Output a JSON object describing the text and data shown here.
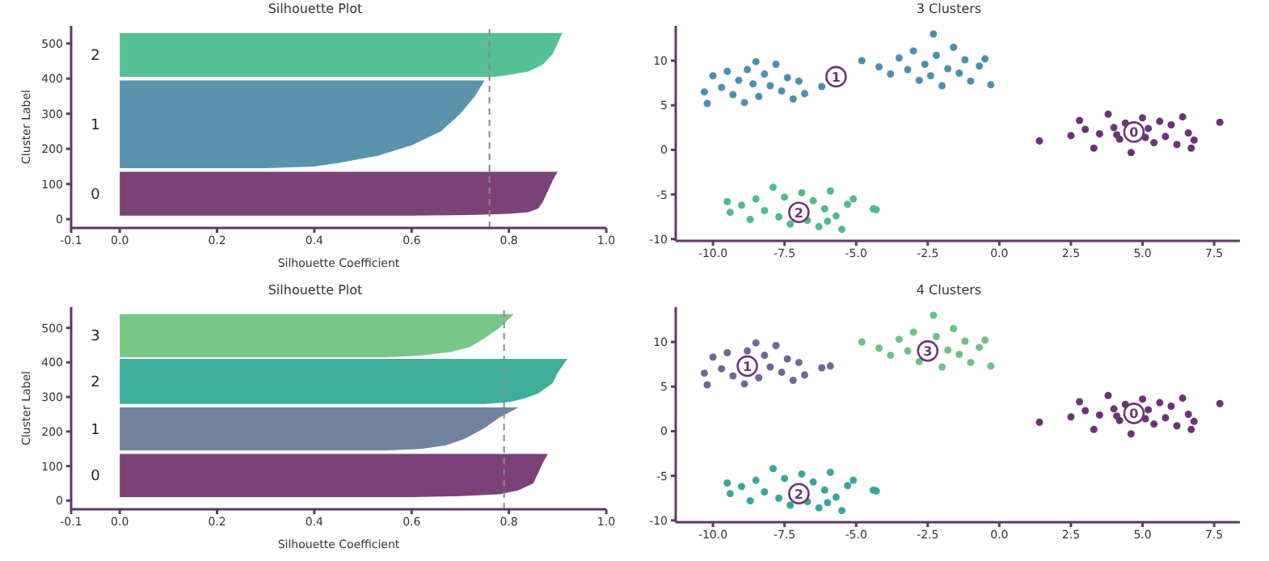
{
  "chart_data": [
    {
      "type": "area",
      "orientation": "horizontal",
      "title": "Silhouette Plot",
      "xlabel": "Silhouette Coefficient",
      "ylabel": "Cluster Label",
      "xlim": [
        -0.1,
        1.0
      ],
      "xticks": [
        -0.1,
        {
          "value": 0,
          "label": "0.0"
        },
        0.2,
        0.4,
        0.6,
        0.8,
        {
          "value": 1,
          "label": "1.0"
        }
      ],
      "ylim": [
        -25,
        550
      ],
      "yticks": [
        0,
        100,
        200,
        300,
        400,
        500
      ],
      "grid": false,
      "legend": false,
      "series": [
        {
          "color": "#7b4279",
          "x": [
            10,
            12,
            15,
            20,
            30,
            50,
            80,
            110,
            135
          ],
          "values": [
            0.6,
            0.72,
            0.8,
            0.84,
            0.86,
            0.87,
            0.88,
            0.89,
            0.9
          ]
        },
        {
          "color": "#5b92ac",
          "x": [
            145,
            150,
            160,
            180,
            210,
            250,
            300,
            350,
            395
          ],
          "values": [
            0.3,
            0.4,
            0.45,
            0.53,
            0.6,
            0.66,
            0.7,
            0.73,
            0.75
          ]
        },
        {
          "color": "#55c096",
          "x": [
            405,
            410,
            420,
            440,
            470,
            500,
            530
          ],
          "values": [
            0.77,
            0.8,
            0.84,
            0.87,
            0.89,
            0.9,
            0.91
          ]
        }
      ],
      "ref_lines": [
        {
          "axis": "x",
          "value": 0.76,
          "color": "#888888",
          "line_style": "dashed"
        }
      ],
      "annotations": [
        "0",
        "1",
        "2"
      ]
    },
    {
      "type": "scatter",
      "title": "3 Clusters",
      "marker": "circle",
      "xlim": [
        -11.3,
        8.4
      ],
      "xticks": [
        {
          "value": -10,
          "label": "-10.0"
        },
        -7.5,
        {
          "value": -5,
          "label": "-5.0"
        },
        -2.5,
        {
          "value": 0,
          "label": "0.0"
        },
        2.5,
        {
          "value": 5,
          "label": "5.0"
        },
        7.5
      ],
      "ylim": [
        -10.2,
        13.9
      ],
      "yticks": [
        -10,
        -5,
        0,
        5,
        10
      ],
      "grid": false,
      "legend": false,
      "series": [
        {
          "color": "#6b3575",
          "x": [
            1.4,
            2.5,
            2.8,
            3.0,
            3.3,
            3.5,
            3.8,
            4.0,
            4.2,
            4.4,
            4.6,
            5.0,
            5.2,
            5.4,
            5.6,
            5.8,
            6.0,
            6.2,
            6.4,
            6.6,
            6.7,
            6.8,
            5.1,
            4.1,
            7.7
          ],
          "values": [
            1,
            1.6,
            3.3,
            2.3,
            0.2,
            1.8,
            4,
            2.5,
            1.2,
            3,
            -0.3,
            3.6,
            2.4,
            0.8,
            3.2,
            1.5,
            2.8,
            0.6,
            3.7,
            1.9,
            0.2,
            1.1,
            1.4,
            1.7,
            3.1
          ]
        },
        {
          "color": "#4f8fae",
          "x": [
            -10.3,
            -10.2,
            -10.0,
            -9.7,
            -9.5,
            -9.3,
            -9.1,
            -8.9,
            -8.8,
            -8.6,
            -8.4,
            -8.2,
            -8.0,
            -7.8,
            -7.6,
            -7.4,
            -7.2,
            -7.0,
            -6.8,
            -6.2,
            -8.5,
            -4.8,
            -4.2,
            -3.8,
            -3.5,
            -3.2,
            -3.0,
            -2.8,
            -2.6,
            -2.4,
            -2.2,
            -2.0,
            -1.8,
            -1.6,
            -1.4,
            -1.2,
            -1.0,
            -0.7,
            -0.5,
            -0.3,
            -2.3
          ],
          "values": [
            6.5,
            5.2,
            8.3,
            7.0,
            8.8,
            6.2,
            7.8,
            5.3,
            9.0,
            7.4,
            6.0,
            8.5,
            7.2,
            9.6,
            6.6,
            8.1,
            5.7,
            7.7,
            6.3,
            7.1,
            9.9,
            10,
            9.3,
            8.5,
            10.3,
            9.0,
            11.1,
            7.8,
            9.6,
            8.3,
            10.6,
            7.2,
            9.1,
            11.5,
            8.6,
            10.1,
            7.7,
            9.4,
            10.2,
            7.3,
            13
          ]
        },
        {
          "color": "#52b98c",
          "x": [
            -9.5,
            -9.4,
            -9.0,
            -8.7,
            -8.5,
            -8.2,
            -7.9,
            -7.7,
            -7.5,
            -7.3,
            -6.9,
            -6.7,
            -6.5,
            -6.3,
            -6.1,
            -5.9,
            -5.7,
            -5.5,
            -5.3,
            -5.1,
            -4.4,
            -4.3,
            -6.0
          ],
          "values": [
            -5.8,
            -7.0,
            -6.2,
            -7.8,
            -5.5,
            -6.8,
            -4.2,
            -7.5,
            -5.3,
            -8.3,
            -4.8,
            -7.9,
            -5.7,
            -8.6,
            -6.6,
            -4.6,
            -7.4,
            -8.9,
            -6.1,
            -5.5,
            -6.6,
            -6.7,
            -8.0
          ]
        }
      ],
      "annotations": [
        {
          "text": "0",
          "x": 4.7,
          "y": 2
        },
        {
          "text": "1",
          "x": -5.7,
          "y": 8.2
        },
        {
          "text": "2",
          "x": -7,
          "y": -7
        }
      ]
    },
    {
      "type": "area",
      "orientation": "horizontal",
      "title": "Silhouette Plot",
      "xlabel": "Silhouette Coefficient",
      "ylabel": "Cluster Label",
      "xlim": [
        -0.1,
        1.0
      ],
      "xticks": [
        -0.1,
        {
          "value": 0,
          "label": "0.0"
        },
        0.2,
        0.4,
        0.6,
        0.8,
        {
          "value": 1,
          "label": "1.0"
        }
      ],
      "ylim": [
        -25,
        560
      ],
      "yticks": [
        0,
        100,
        200,
        300,
        400,
        500
      ],
      "grid": false,
      "legend": false,
      "series": [
        {
          "color": "#7b4279",
          "x": [
            10,
            13,
            18,
            30,
            50,
            80,
            110,
            135
          ],
          "values": [
            0.6,
            0.7,
            0.78,
            0.82,
            0.85,
            0.86,
            0.87,
            0.88
          ]
        },
        {
          "color": "#71839f",
          "x": [
            145,
            150,
            160,
            180,
            210,
            240,
            270
          ],
          "values": [
            0.55,
            0.62,
            0.67,
            0.71,
            0.75,
            0.78,
            0.82
          ]
        },
        {
          "color": "#3eae9c",
          "x": [
            280,
            285,
            295,
            310,
            340,
            370,
            410
          ],
          "values": [
            0.75,
            0.8,
            0.83,
            0.86,
            0.89,
            0.9,
            0.92
          ]
        },
        {
          "color": "#78c688",
          "x": [
            415,
            420,
            430,
            445,
            470,
            500,
            540
          ],
          "values": [
            0.55,
            0.62,
            0.68,
            0.72,
            0.75,
            0.78,
            0.81
          ]
        }
      ],
      "ref_lines": [
        {
          "axis": "x",
          "value": 0.79,
          "color": "#888888",
          "line_style": "dashed"
        }
      ],
      "annotations": [
        "0",
        "1",
        "2",
        "3"
      ]
    },
    {
      "type": "scatter",
      "title": "4 Clusters",
      "marker": "circle",
      "xlim": [
        -11.3,
        8.4
      ],
      "xticks": [
        {
          "value": -10,
          "label": "-10.0"
        },
        -7.5,
        {
          "value": -5,
          "label": "-5.0"
        },
        -2.5,
        {
          "value": 0,
          "label": "0.0"
        },
        2.5,
        {
          "value": 5,
          "label": "5.0"
        },
        7.5
      ],
      "ylim": [
        -10.2,
        13.9
      ],
      "yticks": [
        -10,
        -5,
        0,
        5,
        10
      ],
      "grid": false,
      "legend": false,
      "series": [
        {
          "color": "#6b3575",
          "x": [
            1.4,
            2.5,
            2.8,
            3.0,
            3.3,
            3.5,
            3.8,
            4.0,
            4.2,
            4.4,
            4.6,
            5.0,
            5.2,
            5.4,
            5.6,
            5.8,
            6.0,
            6.2,
            6.4,
            6.6,
            6.7,
            6.8,
            5.1,
            4.1,
            7.7
          ],
          "values": [
            1,
            1.6,
            3.3,
            2.3,
            0.2,
            1.8,
            4,
            2.5,
            1.2,
            3,
            -0.3,
            3.6,
            2.4,
            0.8,
            3.2,
            1.5,
            2.8,
            0.6,
            3.7,
            1.9,
            0.2,
            1.1,
            1.4,
            1.7,
            3.1
          ]
        },
        {
          "color": "#6e6a92",
          "x": [
            -10.3,
            -10.2,
            -10.0,
            -9.7,
            -9.5,
            -9.3,
            -8.9,
            -8.8,
            -8.4,
            -8.2,
            -8.0,
            -7.8,
            -7.6,
            -7.4,
            -7.2,
            -7.0,
            -6.8,
            -6.2,
            -5.9,
            -8.5
          ],
          "values": [
            6.5,
            5.2,
            8.3,
            7.0,
            8.8,
            6.2,
            5.3,
            9.0,
            6.0,
            8.5,
            7.2,
            9.6,
            6.6,
            8.1,
            5.7,
            7.7,
            6.3,
            7.1,
            7.3,
            9.9
          ]
        },
        {
          "color": "#3ea49a",
          "x": [
            -9.5,
            -9.4,
            -9.0,
            -8.7,
            -8.5,
            -8.2,
            -7.9,
            -7.7,
            -7.5,
            -7.3,
            -6.9,
            -6.7,
            -6.5,
            -6.3,
            -6.1,
            -5.9,
            -5.7,
            -5.5,
            -5.3,
            -5.1,
            -4.4,
            -4.3,
            -6.0
          ],
          "values": [
            -5.8,
            -7.0,
            -6.2,
            -7.8,
            -5.5,
            -6.8,
            -4.2,
            -7.5,
            -5.3,
            -8.3,
            -4.8,
            -7.9,
            -5.7,
            -8.6,
            -6.6,
            -4.6,
            -7.4,
            -8.9,
            -6.1,
            -5.5,
            -6.6,
            -6.7,
            -8.0
          ]
        },
        {
          "color": "#6fc08a",
          "x": [
            -4.8,
            -4.2,
            -3.8,
            -3.5,
            -3.2,
            -3.0,
            -2.8,
            -2.2,
            -2.0,
            -1.8,
            -1.6,
            -1.4,
            -1.2,
            -1.0,
            -0.7,
            -0.5,
            -0.3,
            -2.3
          ],
          "values": [
            10,
            9.3,
            8.5,
            10.3,
            9.0,
            11.1,
            7.8,
            10.6,
            7.2,
            9.1,
            11.5,
            8.6,
            10.1,
            7.7,
            9.4,
            10.2,
            7.3,
            13
          ]
        }
      ],
      "annotations": [
        {
          "text": "0",
          "x": 4.7,
          "y": 2
        },
        {
          "text": "1",
          "x": -8.8,
          "y": 7.3
        },
        {
          "text": "2",
          "x": -7,
          "y": -7
        },
        {
          "text": "3",
          "x": -2.5,
          "y": 9
        }
      ]
    }
  ]
}
